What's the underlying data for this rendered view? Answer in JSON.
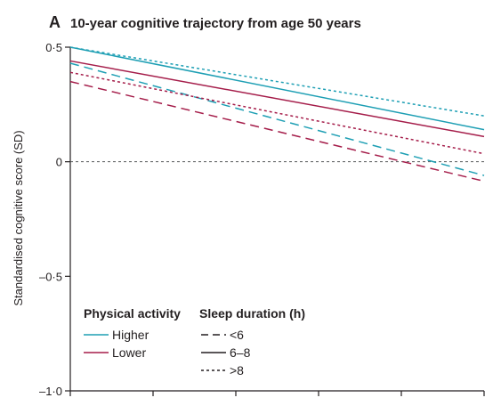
{
  "panel_letter": "A",
  "chart_data": {
    "type": "line",
    "title": "10-year cognitive trajectory from age 50 years",
    "ylabel": "Standardised cognitive score (SD)",
    "xlabel": "",
    "x": [
      0,
      10
    ],
    "xlim": [
      0,
      10
    ],
    "x_ticks": [
      0,
      2,
      4,
      6,
      8,
      10
    ],
    "ylim": [
      -1.0,
      0.5
    ],
    "y_ticks": [
      0.5,
      0,
      -0.5,
      -1.0
    ],
    "y_tick_labels": [
      "0·5",
      "0",
      "–0·5",
      "–1·0"
    ],
    "reference_line": {
      "y": 0,
      "style": "dotted",
      "color": "#58595b"
    },
    "series": [
      {
        "activity": "Higher",
        "sleep": ">8",
        "color": "#1e9fb4",
        "dash": "dotted",
        "values": [
          0.5,
          0.2
        ]
      },
      {
        "activity": "Higher",
        "sleep": "6–8",
        "color": "#1e9fb4",
        "dash": "solid",
        "values": [
          0.5,
          0.14
        ]
      },
      {
        "activity": "Lower",
        "sleep": "6–8",
        "color": "#a51d4a",
        "dash": "solid",
        "values": [
          0.44,
          0.11
        ]
      },
      {
        "activity": "Higher",
        "sleep": "<6",
        "color": "#1e9fb4",
        "dash": "dashed",
        "values": [
          0.43,
          -0.06
        ]
      },
      {
        "activity": "Lower",
        "sleep": ">8",
        "color": "#a51d4a",
        "dash": "dotted",
        "values": [
          0.39,
          0.035
        ]
      },
      {
        "activity": "Lower",
        "sleep": "<6",
        "color": "#a51d4a",
        "dash": "dashed",
        "values": [
          0.35,
          -0.085
        ]
      }
    ],
    "legend": {
      "placement": "bottom-left",
      "activity_heading": "Physical activity",
      "activity_items": [
        {
          "label": "Higher",
          "color": "#1e9fb4"
        },
        {
          "label": "Lower",
          "color": "#a51d4a"
        }
      ],
      "sleep_heading": "Sleep duration (h)",
      "sleep_items": [
        {
          "label": "<6",
          "dash": "dashed"
        },
        {
          "label": "6–8",
          "dash": "solid"
        },
        {
          "label": ">8",
          "dash": "dotted"
        }
      ]
    },
    "grid": false
  }
}
